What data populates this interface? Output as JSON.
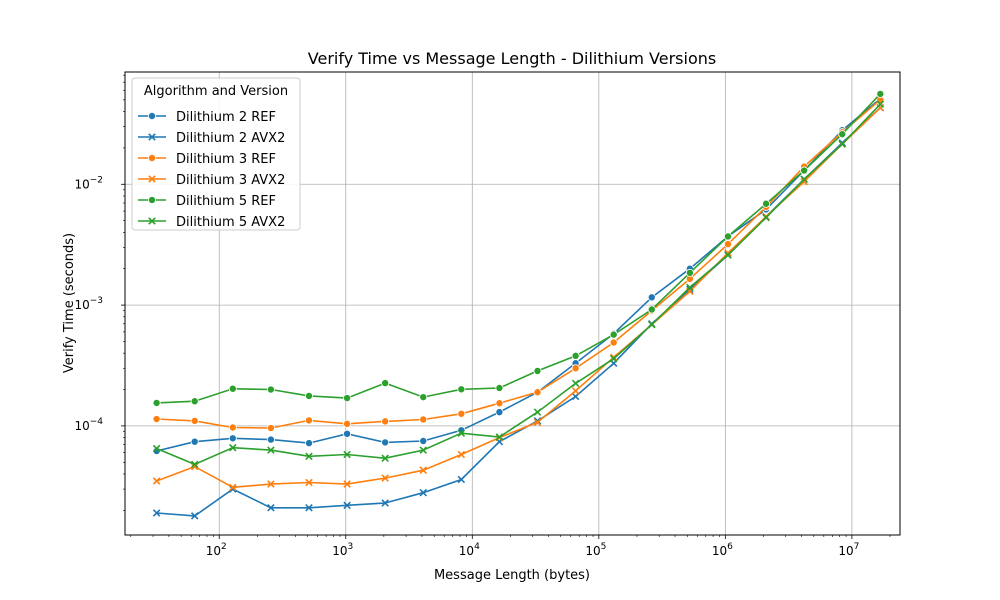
{
  "chart_data": {
    "type": "line",
    "title": "Verify Time vs Message Length - Dilithium Versions",
    "xlabel": "Message Length (bytes)",
    "ylabel": "Verify Time (seconds)",
    "xscale": "log",
    "yscale": "log",
    "xlim": [
      18,
      24000000
    ],
    "ylim": [
      1.25e-05,
      0.085
    ],
    "grid": true,
    "legend": {
      "title": "Algorithm and Version",
      "placement": "top-left"
    },
    "xticks": [
      {
        "value": 100,
        "base": "10",
        "exp": "2"
      },
      {
        "value": 1000,
        "base": "10",
        "exp": "3"
      },
      {
        "value": 10000,
        "base": "10",
        "exp": "4"
      },
      {
        "value": 100000,
        "base": "10",
        "exp": "5"
      },
      {
        "value": 1000000,
        "base": "10",
        "exp": "6"
      },
      {
        "value": 10000000,
        "base": "10",
        "exp": "7"
      }
    ],
    "yticks": [
      {
        "value": 0.0001,
        "base": "10",
        "exp": "−4"
      },
      {
        "value": 0.001,
        "base": "10",
        "exp": "−3"
      },
      {
        "value": 0.01,
        "base": "10",
        "exp": "−2"
      }
    ],
    "x": [
      32,
      64,
      128,
      256,
      512,
      1024,
      2048,
      4096,
      8192,
      16384,
      32768,
      65536,
      131072,
      262144,
      524288,
      1048576,
      2097152,
      4194304,
      8388608,
      16777216
    ],
    "series": [
      {
        "name": "Dilithium 2 REF",
        "color": "#1f77b4",
        "marker": "circle",
        "values": [
          6.2e-05,
          7.4e-05,
          7.9e-05,
          7.7e-05,
          7.2e-05,
          8.6e-05,
          7.3e-05,
          7.5e-05,
          9.2e-05,
          0.00013,
          0.00019,
          0.00033,
          0.00058,
          0.00116,
          0.002,
          0.0037,
          0.0062,
          0.013,
          0.028,
          0.051
        ]
      },
      {
        "name": "Dilithium 2 AVX2",
        "color": "#1f77b4",
        "marker": "x",
        "values": [
          1.9e-05,
          1.8e-05,
          3e-05,
          2.1e-05,
          2.1e-05,
          2.2e-05,
          2.3e-05,
          2.8e-05,
          3.6e-05,
          7.4e-05,
          0.00011,
          0.000175,
          0.00033,
          0.0007,
          0.00135,
          0.0026,
          0.0054,
          0.011,
          0.022,
          0.043
        ]
      },
      {
        "name": "Dilithium 3 REF",
        "color": "#ff7f0e",
        "marker": "circle",
        "values": [
          0.000114,
          0.00011,
          9.7e-05,
          9.6e-05,
          0.000111,
          0.000104,
          0.000109,
          0.000113,
          0.000126,
          0.000154,
          0.00019,
          0.0003,
          0.00049,
          0.0009,
          0.00165,
          0.0032,
          0.0065,
          0.014,
          0.027,
          0.05
        ]
      },
      {
        "name": "Dilithium 3 AVX2",
        "color": "#ff7f0e",
        "marker": "x",
        "values": [
          3.5e-05,
          4.6e-05,
          3.1e-05,
          3.3e-05,
          3.4e-05,
          3.3e-05,
          3.7e-05,
          4.3e-05,
          5.8e-05,
          8e-05,
          0.000107,
          0.000195,
          0.00037,
          0.00069,
          0.0013,
          0.0027,
          0.0054,
          0.0105,
          0.0215,
          0.043
        ]
      },
      {
        "name": "Dilithium 5 REF",
        "color": "#2ca02c",
        "marker": "circle",
        "values": [
          0.000155,
          0.00016,
          0.000203,
          0.0002,
          0.000177,
          0.00017,
          0.000226,
          0.000173,
          0.000201,
          0.000206,
          0.000285,
          0.00038,
          0.00057,
          0.00092,
          0.00185,
          0.0037,
          0.0069,
          0.013,
          0.026,
          0.056
        ]
      },
      {
        "name": "Dilithium 5 AVX2",
        "color": "#2ca02c",
        "marker": "x",
        "values": [
          6.5e-05,
          4.8e-05,
          6.6e-05,
          6.3e-05,
          5.6e-05,
          5.8e-05,
          5.4e-05,
          6.3e-05,
          8.7e-05,
          8.1e-05,
          0.00013,
          0.000225,
          0.00036,
          0.00069,
          0.0014,
          0.0026,
          0.0053,
          0.011,
          0.0215,
          0.046
        ]
      }
    ]
  }
}
